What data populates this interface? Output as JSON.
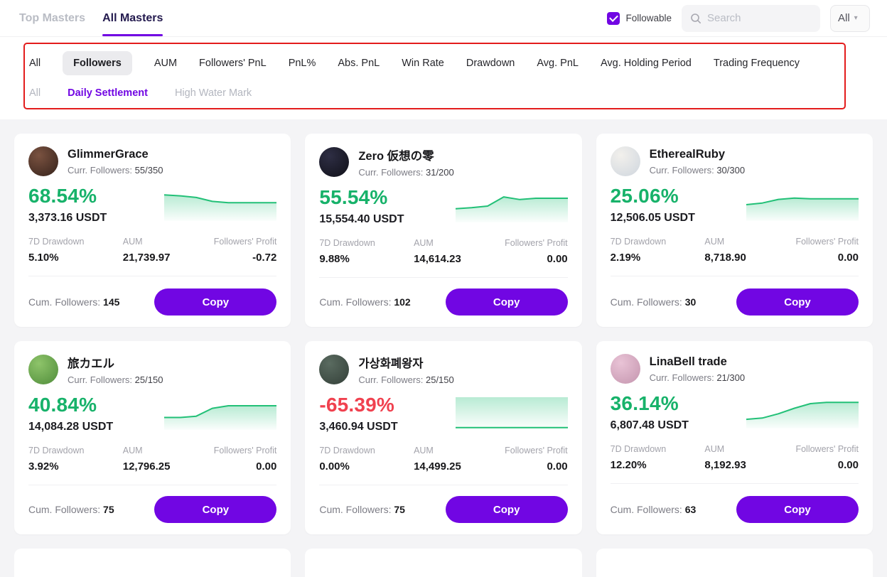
{
  "colors": {
    "accent": "#7106e3",
    "positive": "#17b26a",
    "negative": "#f0414f",
    "spark_line": "#22c077",
    "annotation": "#e31c1c"
  },
  "header": {
    "tabs": [
      {
        "label": "Top Masters",
        "active": false
      },
      {
        "label": "All Masters",
        "active": true
      }
    ],
    "followable_label": "Followable",
    "followable_checked": true,
    "search_placeholder": "Search",
    "filter_dropdown_value": "All"
  },
  "filters": {
    "sort_options": [
      "All",
      "Followers",
      "AUM",
      "Followers' PnL",
      "PnL%",
      "Abs. PnL",
      "Win Rate",
      "Drawdown",
      "Avg. PnL",
      "Avg. Holding Period",
      "Trading Frequency"
    ],
    "sort_selected": "Followers",
    "settlement_options": [
      "All",
      "Daily Settlement",
      "High Water Mark"
    ],
    "settlement_selected": "Daily Settlement"
  },
  "labels": {
    "curr_followers": "Curr. Followers:",
    "drawdown": "7D Drawdown",
    "aum": "AUM",
    "followers_profit": "Followers' Profit",
    "cum_followers": "Cum. Followers:",
    "copy": "Copy"
  },
  "cards": [
    {
      "name": "GlimmerGrace",
      "curr_followers": "55/350",
      "roi": "68.54%",
      "positive": true,
      "value": "3,373.16 USDT",
      "drawdown": "5.10%",
      "aum": "21,739.97",
      "followers_profit": "-0.72",
      "cum_followers": "145",
      "avatar": [
        "#7a5240",
        "#35221b"
      ],
      "spark": [
        0.2,
        0.23,
        0.28,
        0.4,
        0.44,
        0.44,
        0.44,
        0.44
      ],
      "fill": "below"
    },
    {
      "name": "Zero 仮想の零",
      "curr_followers": "31/200",
      "roi": "55.54%",
      "positive": true,
      "value": "15,554.40 USDT",
      "drawdown": "9.88%",
      "aum": "14,614.23",
      "followers_profit": "0.00",
      "cum_followers": "102",
      "avatar": [
        "#2e2e44",
        "#101018"
      ],
      "spark": [
        0.58,
        0.55,
        0.5,
        0.22,
        0.3,
        0.26,
        0.26,
        0.26
      ],
      "fill": "below"
    },
    {
      "name": "EtherealRuby",
      "curr_followers": "30/300",
      "roi": "25.06%",
      "positive": true,
      "value": "12,506.05 USDT",
      "drawdown": "2.19%",
      "aum": "8,718.90",
      "followers_profit": "0.00",
      "cum_followers": "30",
      "avatar": [
        "#f2f0ec",
        "#cfd6de"
      ],
      "spark": [
        0.5,
        0.45,
        0.34,
        0.3,
        0.32,
        0.32,
        0.32,
        0.32
      ],
      "fill": "below"
    },
    {
      "name": "旅カエル",
      "curr_followers": "25/150",
      "roi": "40.84%",
      "positive": true,
      "value": "14,084.28 USDT",
      "drawdown": "3.92%",
      "aum": "12,796.25",
      "followers_profit": "0.00",
      "cum_followers": "75",
      "avatar": [
        "#8ec46a",
        "#4f8c3a"
      ],
      "spark": [
        0.62,
        0.62,
        0.58,
        0.34,
        0.26,
        0.26,
        0.26,
        0.26
      ],
      "fill": "below"
    },
    {
      "name": "가상화폐왕자",
      "curr_followers": "25/150",
      "roi": "-65.39%",
      "positive": false,
      "value": "3,460.94 USDT",
      "drawdown": "0.00%",
      "aum": "14,499.25",
      "followers_profit": "0.00",
      "cum_followers": "75",
      "avatar": [
        "#5a6b60",
        "#333f38"
      ],
      "spark": [
        0.93,
        0.93,
        0.93,
        0.93,
        0.93,
        0.93,
        0.93,
        0.93
      ],
      "fill": "above"
    },
    {
      "name": "LinaBell trade",
      "curr_followers": "21/300",
      "roi": "36.14%",
      "positive": true,
      "value": "6,807.48 USDT",
      "drawdown": "12.20%",
      "aum": "8,192.93",
      "followers_profit": "0.00",
      "cum_followers": "63",
      "avatar": [
        "#e9c3d6",
        "#c495ae"
      ],
      "spark": [
        0.72,
        0.68,
        0.55,
        0.38,
        0.24,
        0.2,
        0.2,
        0.2
      ],
      "fill": "below"
    }
  ]
}
